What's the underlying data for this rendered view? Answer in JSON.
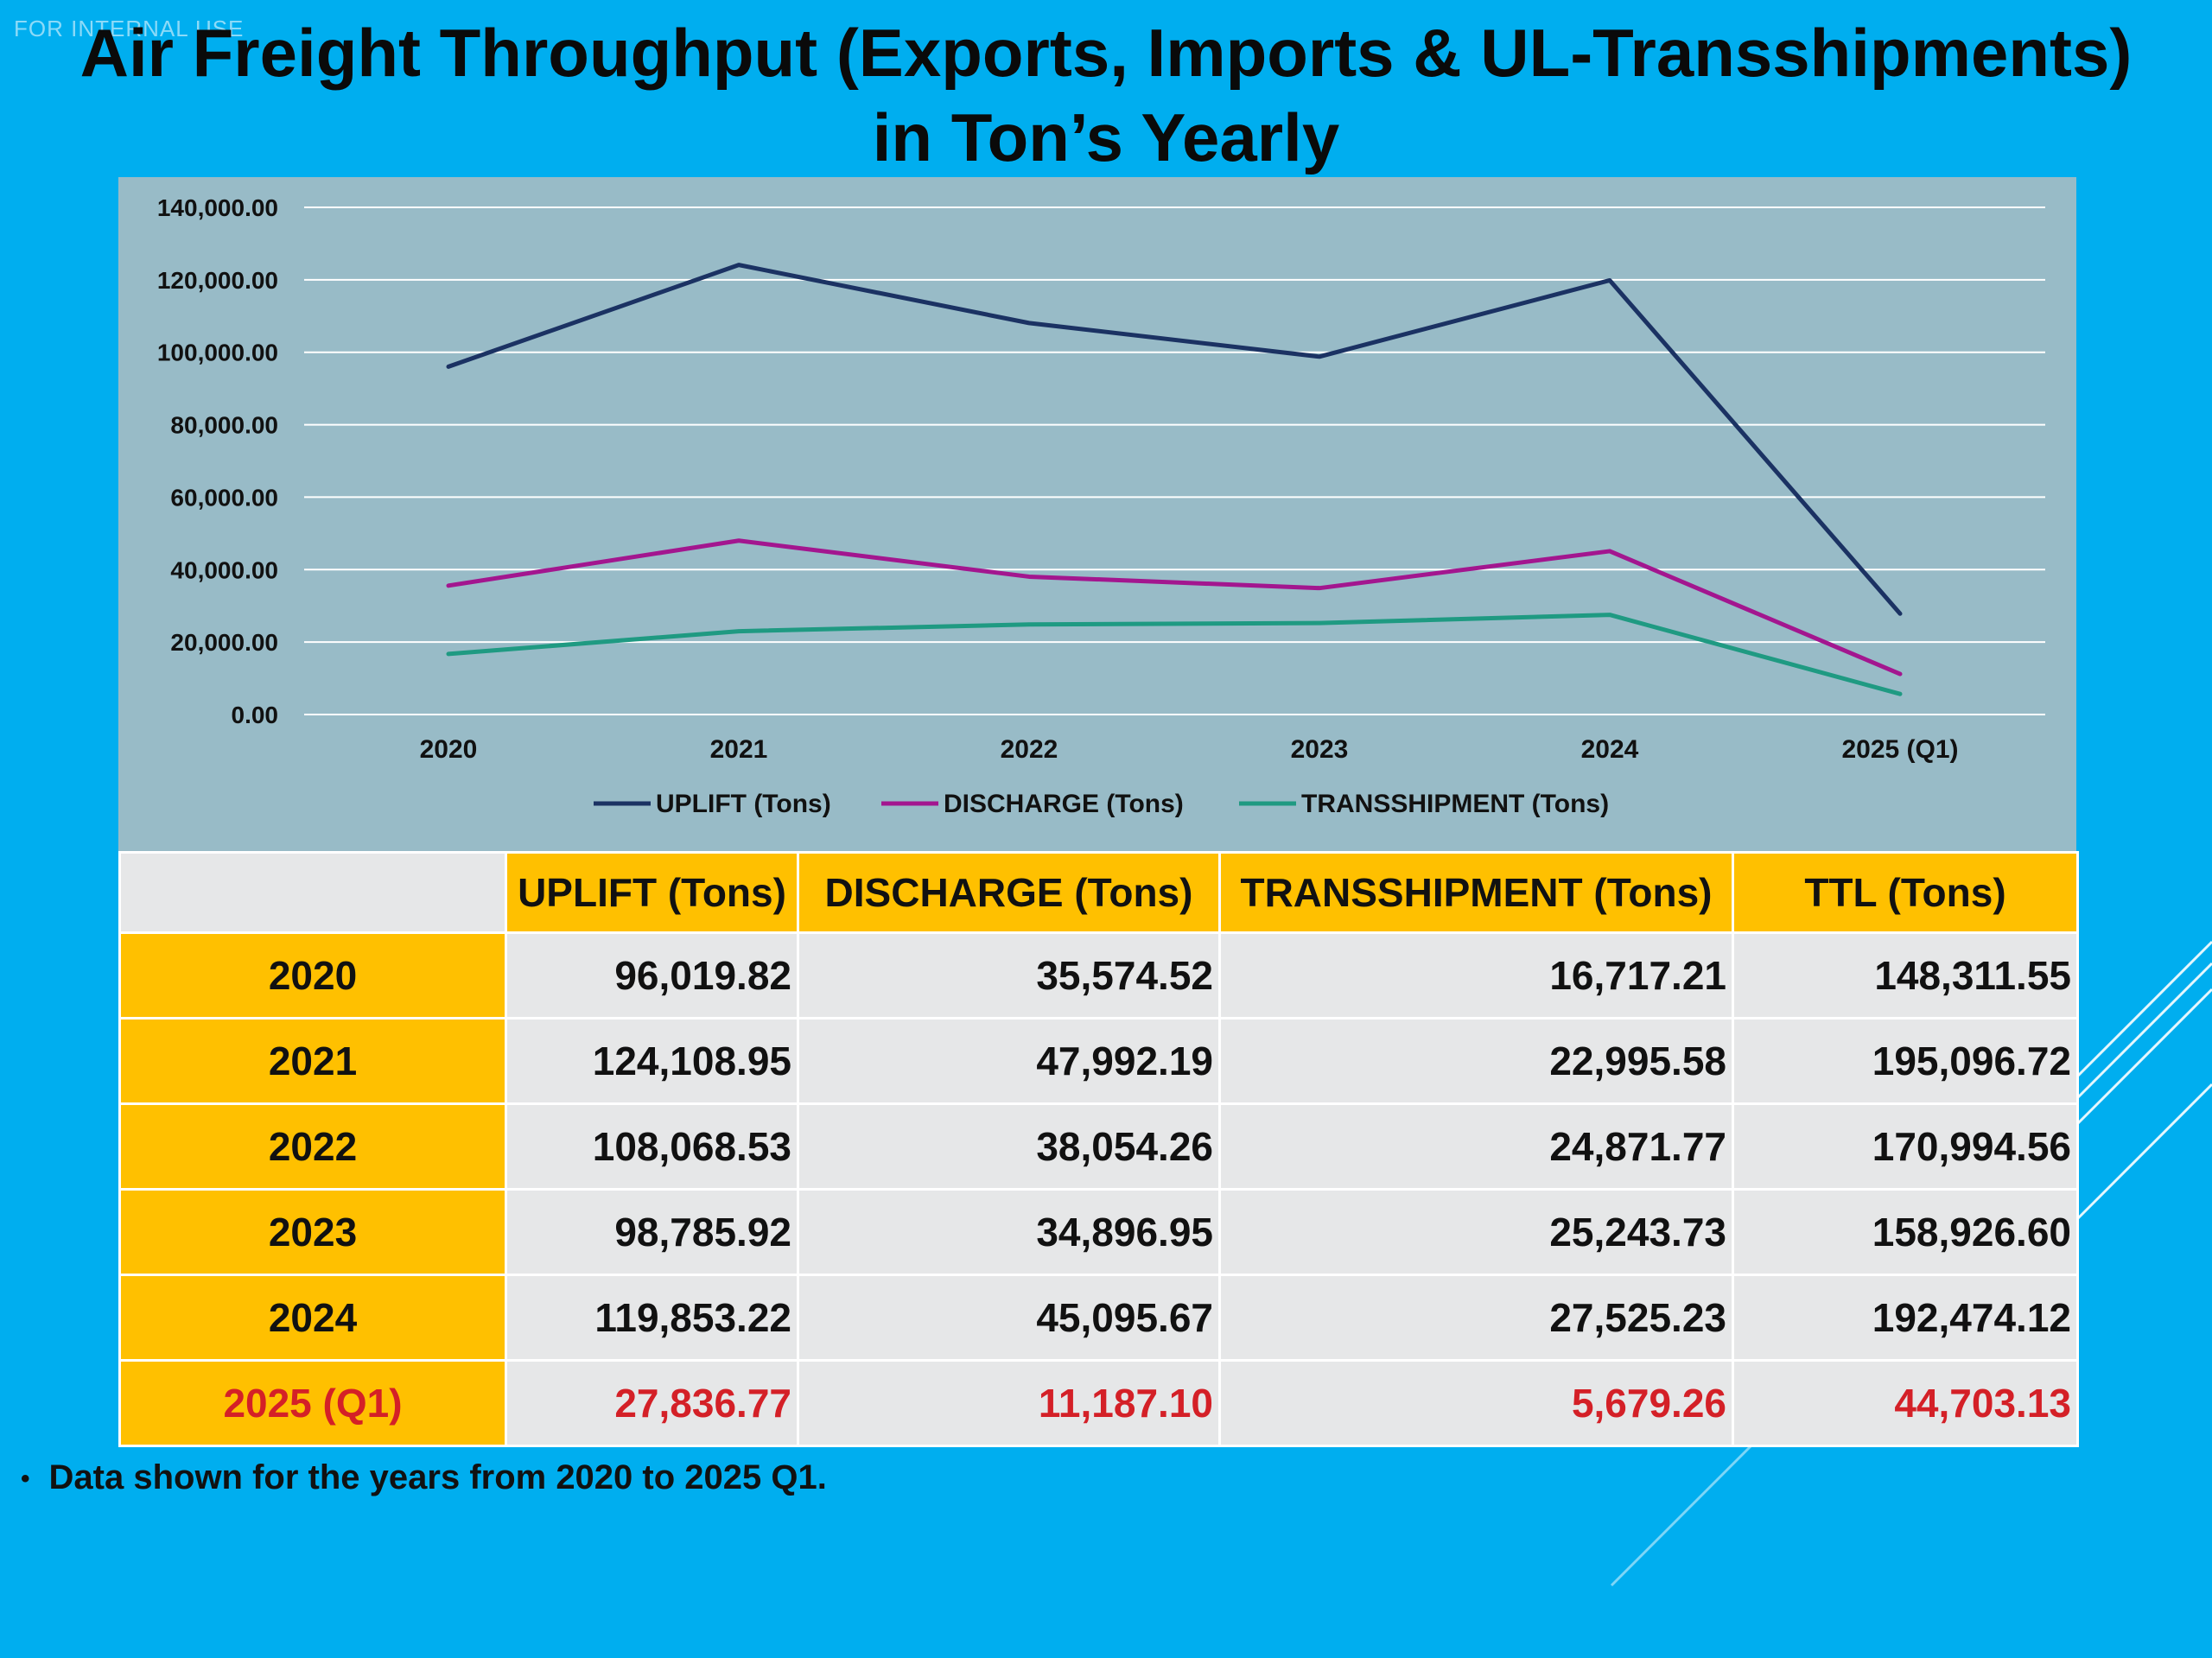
{
  "watermark": "FOR INTERNAL USE",
  "title": {
    "line1": "Air Freight Throughput (Exports, Imports & UL-Transshipments)",
    "line2": "in Ton’s Yearly"
  },
  "colors": {
    "background": "#00AEEF",
    "chart_panel": "#98BBC7",
    "uplift": "#1B3263",
    "discharge": "#A3168F",
    "transshipment": "#1F9A82",
    "header": "#FFC000",
    "cell": "#E6E7E8",
    "highlight_text": "#D42027"
  },
  "chart_data": {
    "type": "line",
    "title": "",
    "categories": [
      "2020",
      "2021",
      "2022",
      "2023",
      "2024",
      "2025 (Q1)"
    ],
    "series": [
      {
        "name": "UPLIFT (Tons)",
        "values": [
          96019.82,
          124108.95,
          108068.53,
          98785.92,
          119853.22,
          27836.77
        ]
      },
      {
        "name": "DISCHARGE (Tons)",
        "values": [
          35574.52,
          47992.19,
          38054.26,
          34896.95,
          45095.67,
          11187.1
        ]
      },
      {
        "name": "TRANSSHIPMENT (Tons)",
        "values": [
          16717.21,
          22995.58,
          24871.77,
          25243.73,
          27525.23,
          5679.26
        ]
      }
    ],
    "y_ticks": [
      "0.00",
      "20,000.00",
      "40,000.00",
      "60,000.00",
      "80,000.00",
      "100,000.00",
      "120,000.00",
      "140,000.00"
    ],
    "ylim": [
      0,
      140000
    ],
    "xlabel": "",
    "ylabel": "",
    "grid": true,
    "legend_position": "bottom"
  },
  "table": {
    "headers": [
      "",
      "UPLIFT (Tons)",
      "DISCHARGE (Tons)",
      "TRANSSHIPMENT (Tons)",
      "TTL (Tons)"
    ],
    "rows": [
      {
        "year": "2020",
        "uplift": "96,019.82",
        "discharge": "35,574.52",
        "transshipment": "16,717.21",
        "total": "148,311.55"
      },
      {
        "year": "2021",
        "uplift": "124,108.95",
        "discharge": "47,992.19",
        "transshipment": "22,995.58",
        "total": "195,096.72"
      },
      {
        "year": "2022",
        "uplift": "108,068.53",
        "discharge": "38,054.26",
        "transshipment": "24,871.77",
        "total": "170,994.56"
      },
      {
        "year": "2023",
        "uplift": "98,785.92",
        "discharge": "34,896.95",
        "transshipment": "25,243.73",
        "total": "158,926.60"
      },
      {
        "year": "2024",
        "uplift": "119,853.22",
        "discharge": "45,095.67",
        "transshipment": "27,525.23",
        "total": "192,474.12"
      },
      {
        "year": "2025 (Q1)",
        "uplift": "27,836.77",
        "discharge": "11,187.10",
        "transshipment": "5,679.26",
        "total": "44,703.13"
      }
    ]
  },
  "note": {
    "bullet": "•",
    "text": "Data shown for the years from 2020 to 2025 Q1."
  }
}
